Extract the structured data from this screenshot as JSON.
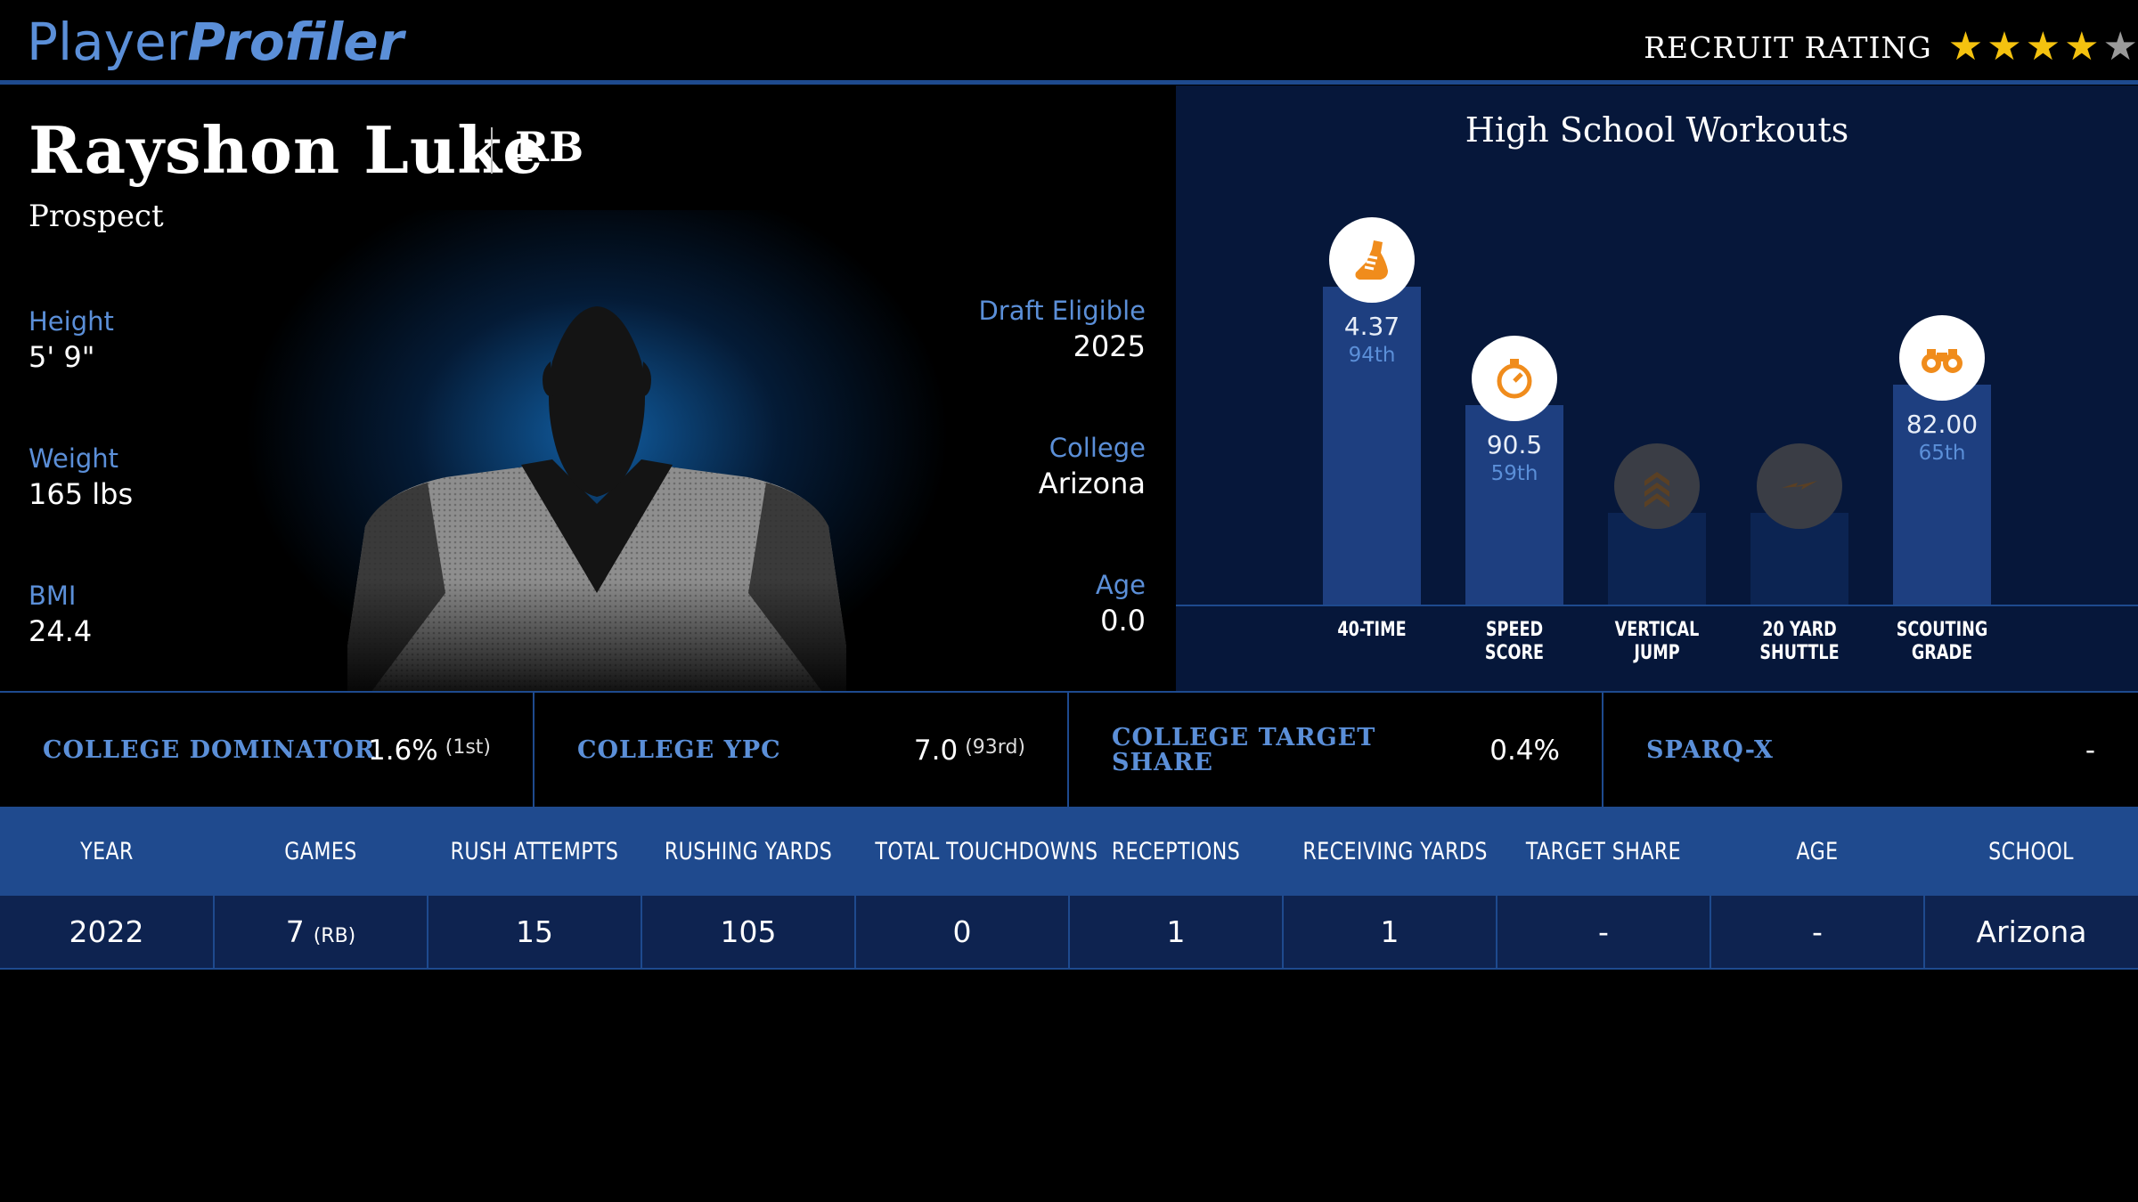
{
  "header": {
    "logo_part1": "Player",
    "logo_part2": "Profiler",
    "rating_label": "RECRUIT RATING",
    "rating_value": 4,
    "rating_max": 5,
    "star_color": "#f4c20f"
  },
  "player": {
    "name": "Rayshon Luke",
    "position": "RB",
    "status": "Prospect",
    "height_label": "Height",
    "height": "5' 9\"",
    "weight_label": "Weight",
    "weight": "165 lbs",
    "bmi_label": "BMI",
    "bmi": "24.4",
    "draft_label": "Draft Eligible",
    "draft_year": "2025",
    "college_label": "College",
    "college": "Arizona",
    "age_label": "Age",
    "age": "0.0"
  },
  "workouts": {
    "title": "High School Workouts",
    "items": [
      {
        "name_line1": "40-TIME",
        "name_line2": "",
        "value": "4.37",
        "percentile": "94th",
        "percentile_value": 94,
        "icon": "shoe-icon",
        "active": true
      },
      {
        "name_line1": "SPEED",
        "name_line2": "SCORE",
        "value": "90.5",
        "percentile": "59th",
        "percentile_value": 59,
        "icon": "stopwatch-icon",
        "active": true
      },
      {
        "name_line1": "VERTICAL",
        "name_line2": "JUMP",
        "value": "",
        "percentile": "",
        "percentile_value": 27,
        "icon": "chevrons-up-icon",
        "active": false
      },
      {
        "name_line1": "20 YARD",
        "name_line2": "SHUTTLE",
        "value": "",
        "percentile": "",
        "percentile_value": 27,
        "icon": "lightning-icon",
        "active": false
      },
      {
        "name_line1": "SCOUTING",
        "name_line2": "GRADE",
        "value": "82.00",
        "percentile": "65th",
        "percentile_value": 65,
        "icon": "binoculars-icon",
        "active": true
      }
    ]
  },
  "metrics": [
    {
      "label": "COLLEGE DOMINATOR",
      "value": "1.6%",
      "rank": "(1st)"
    },
    {
      "label": "COLLEGE YPC",
      "value": "7.0",
      "rank": "(93rd)"
    },
    {
      "label_line1": "COLLEGE TARGET",
      "label_line2": "SHARE",
      "value": "0.4%",
      "rank": ""
    },
    {
      "label": "SPARQ-X",
      "value": "-",
      "rank": ""
    }
  ],
  "table": {
    "headers": [
      "YEAR",
      "GAMES",
      "RUSH ATTEMPTS",
      "RUSHING YARDS",
      "TOTAL TOUCHDOWNS",
      "RECEPTIONS",
      "RECEIVING YARDS",
      "TARGET SHARE",
      "AGE",
      "SCHOOL"
    ],
    "rows": [
      {
        "year": "2022",
        "games": "7",
        "games_pos": "(RB)",
        "rush_attempts": "15",
        "rushing_yards": "105",
        "total_touchdowns": "0",
        "receptions": "1",
        "receiving_yards": "1",
        "target_share": "-",
        "age": "-",
        "school": "Arizona"
      }
    ]
  },
  "colors": {
    "accent": "#5b8fd8",
    "bar": "#1e3f80",
    "panel": "#06173a",
    "table_header": "#1f4a8e",
    "table_row": "#0e2350"
  }
}
